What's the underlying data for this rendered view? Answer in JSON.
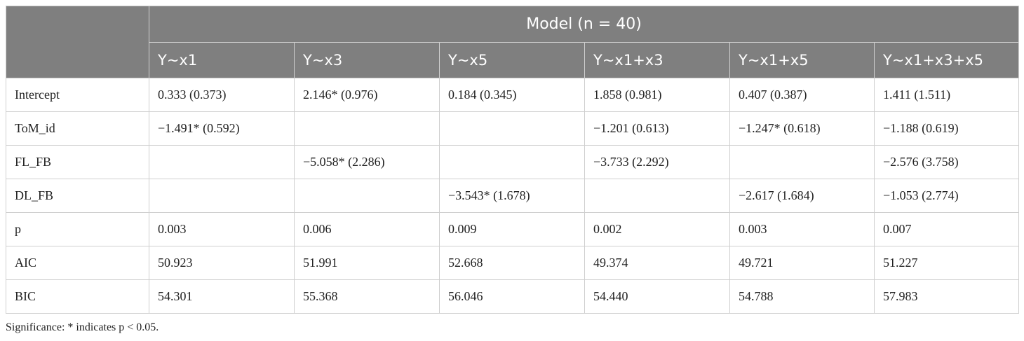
{
  "table": {
    "group_header": "Model (n = 40)",
    "corner": "",
    "columns": [
      "Y~x1",
      "Y~x3",
      "Y~x5",
      "Y~x1+x3",
      "Y~x1+x5",
      "Y~x1+x3+x5"
    ],
    "rows": [
      {
        "label": "Intercept",
        "cells": [
          "0.333 (0.373)",
          "2.146* (0.976)",
          "0.184 (0.345)",
          "1.858 (0.981)",
          "0.407 (0.387)",
          "1.411 (1.511)"
        ]
      },
      {
        "label": "ToM_id",
        "cells": [
          "−1.491* (0.592)",
          "",
          "",
          "−1.201 (0.613)",
          "−1.247* (0.618)",
          "−1.188 (0.619)"
        ]
      },
      {
        "label": "FL_FB",
        "cells": [
          "",
          "−5.058* (2.286)",
          "",
          "−3.733 (2.292)",
          "",
          "−2.576 (3.758)"
        ]
      },
      {
        "label": "DL_FB",
        "cells": [
          "",
          "",
          "−3.543* (1.678)",
          "",
          "−2.617 (1.684)",
          "−1.053 (2.774)"
        ]
      },
      {
        "label": "p",
        "cells": [
          "0.003",
          "0.006",
          "0.009",
          "0.002",
          "0.003",
          "0.007"
        ]
      },
      {
        "label": "AIC",
        "cells": [
          "50.923",
          "51.991",
          "52.668",
          "49.374",
          "49.721",
          "51.227"
        ]
      },
      {
        "label": "BIC",
        "cells": [
          "54.301",
          "55.368",
          "56.046",
          "54.440",
          "54.788",
          "57.983"
        ]
      }
    ]
  },
  "footnote": "Significance: * indicates p < 0.05."
}
